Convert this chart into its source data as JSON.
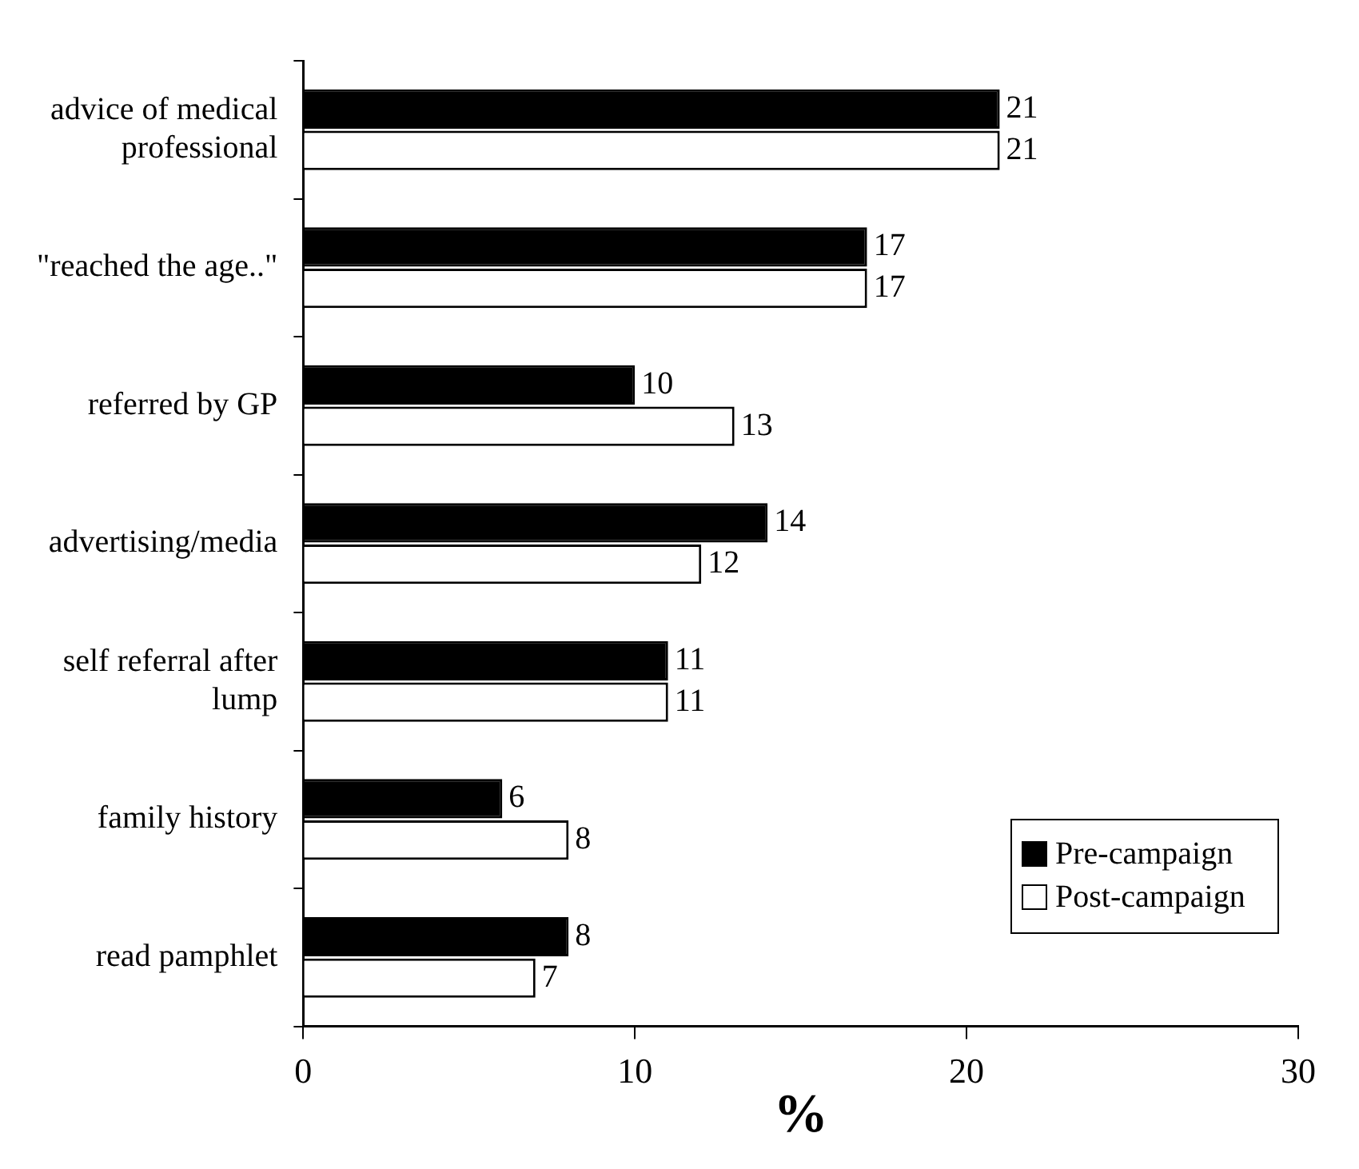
{
  "chart_data": {
    "type": "bar",
    "orientation": "horizontal",
    "xlabel": "%",
    "categories": [
      "advice of medical professional",
      "\"reached the age..\"",
      "referred by GP",
      "advertising/media",
      "self referral after lump",
      "family history",
      "read pamphlet"
    ],
    "series": [
      {
        "name": "Pre-campaign",
        "color": "#000000",
        "values": [
          21,
          17,
          10,
          14,
          11,
          6,
          8
        ]
      },
      {
        "name": "Post-campaign",
        "color": "#ffffff",
        "values": [
          21,
          17,
          13,
          12,
          11,
          8,
          7
        ]
      }
    ],
    "xlim": [
      0,
      30
    ],
    "xticks": [
      0,
      10,
      20,
      30
    ],
    "grid": false,
    "legend": "bottom right",
    "data_labels": true
  }
}
